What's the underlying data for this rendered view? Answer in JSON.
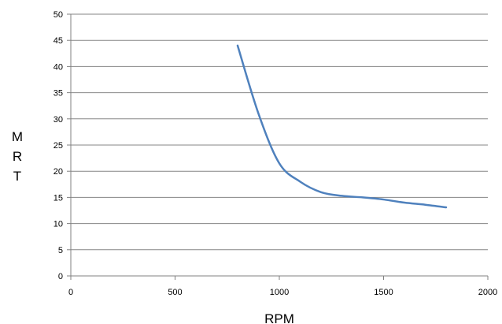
{
  "chart_data": {
    "type": "line",
    "title": "",
    "xlabel": "RPM",
    "ylabel": "M R T",
    "ylabel_letters": [
      "M",
      "R",
      "T"
    ],
    "xlim": [
      0,
      2000
    ],
    "ylim": [
      0,
      50
    ],
    "x_ticks": [
      0,
      500,
      1000,
      1500,
      2000
    ],
    "y_ticks": [
      0,
      5,
      10,
      15,
      20,
      25,
      30,
      35,
      40,
      45,
      50
    ],
    "grid": "horizontal",
    "legend": "none",
    "series": [
      {
        "color": "#4f81bd",
        "x": [
          800,
          900,
          1000,
          1100,
          1200,
          1300,
          1400,
          1500,
          1600,
          1700,
          1800
        ],
        "y": [
          44,
          31,
          21.5,
          18,
          16,
          15.3,
          15,
          14.6,
          14,
          13.6,
          13.1
        ]
      }
    ]
  }
}
